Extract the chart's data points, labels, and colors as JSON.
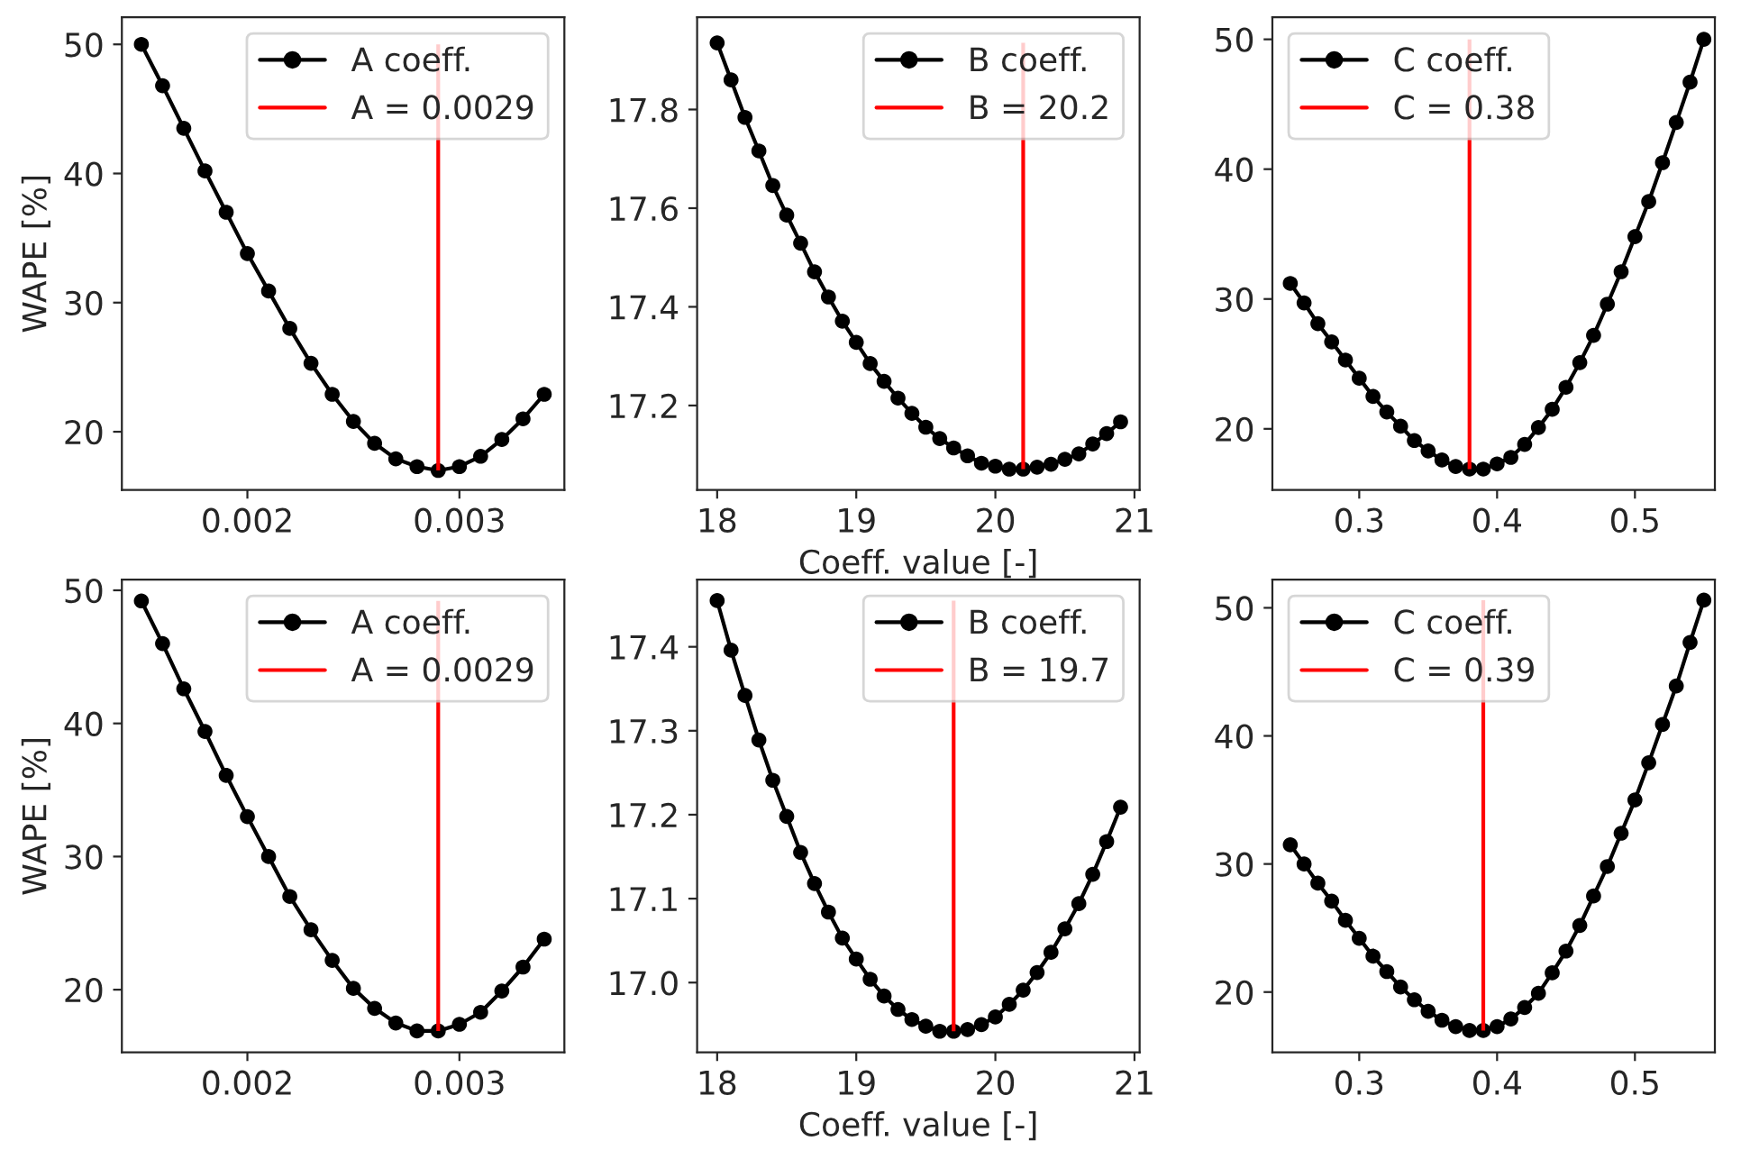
{
  "chart_data": [
    {
      "type": "line",
      "ylabel": "WAPE [%]",
      "x": [
        0.0015,
        0.0016,
        0.0017,
        0.0018,
        0.0019,
        0.002,
        0.0021,
        0.0022,
        0.0023,
        0.0024,
        0.0025,
        0.0026,
        0.0027,
        0.0028,
        0.0029,
        0.003,
        0.0031,
        0.0032,
        0.0033,
        0.0034
      ],
      "series": [
        {
          "name": "A coeff.",
          "color": "#000000",
          "values": [
            50.0,
            46.8,
            43.5,
            40.2,
            37.0,
            33.8,
            30.9,
            28.0,
            25.3,
            22.9,
            20.8,
            19.1,
            17.9,
            17.3,
            17.0,
            17.3,
            18.1,
            19.4,
            21.0,
            22.9
          ]
        }
      ],
      "ref_lines": [
        {
          "axis": "x",
          "value": 0.0029,
          "label": "A = 0.0029",
          "color": "#ff0000"
        }
      ],
      "xlim": [
        0.001408,
        0.003495
      ],
      "ylim": [
        15.5,
        52.1
      ],
      "xticks": [
        0.002,
        0.003
      ],
      "yticks": [
        20,
        30,
        40,
        50
      ],
      "marker": "circle",
      "legend": "top right",
      "grid": false
    },
    {
      "type": "line",
      "xlabel": "Coeff. value [-]",
      "x": [
        18.0,
        18.1,
        18.2,
        18.3,
        18.4,
        18.5,
        18.6,
        18.7,
        18.8,
        18.9,
        19.0,
        19.1,
        19.2,
        19.3,
        19.4,
        19.5,
        19.6,
        19.7,
        19.8,
        19.9,
        20.0,
        20.1,
        20.2,
        20.3,
        20.4,
        20.5,
        20.6,
        20.7,
        20.8,
        20.9
      ],
      "series": [
        {
          "name": "B coeff.",
          "color": "#000000",
          "values": [
            17.935,
            17.86,
            17.784,
            17.716,
            17.646,
            17.586,
            17.529,
            17.471,
            17.42,
            17.371,
            17.328,
            17.285,
            17.249,
            17.215,
            17.184,
            17.156,
            17.133,
            17.114,
            17.098,
            17.083,
            17.077,
            17.071,
            17.071,
            17.075,
            17.081,
            17.091,
            17.102,
            17.122,
            17.143,
            17.167
          ]
        }
      ],
      "ref_lines": [
        {
          "axis": "x",
          "value": 20.2,
          "label": "B = 20.2",
          "color": "#ff0000"
        }
      ],
      "xlim": [
        17.856,
        21.037
      ],
      "ylim": [
        17.029,
        17.987
      ],
      "xticks": [
        18,
        19,
        20,
        21
      ],
      "yticks": [
        17.2,
        17.4,
        17.6,
        17.8
      ],
      "marker": "circle",
      "legend": "top right",
      "grid": false
    },
    {
      "type": "line",
      "x": [
        0.25,
        0.26,
        0.27,
        0.28,
        0.29,
        0.3,
        0.31,
        0.32,
        0.33,
        0.34,
        0.35,
        0.36,
        0.37,
        0.38,
        0.39,
        0.4,
        0.41,
        0.42,
        0.43,
        0.44,
        0.45,
        0.46,
        0.47,
        0.48,
        0.49,
        0.5,
        0.51,
        0.52,
        0.53,
        0.54,
        0.55
      ],
      "series": [
        {
          "name": "C coeff.",
          "color": "#000000",
          "values": [
            31.2,
            29.7,
            28.1,
            26.7,
            25.3,
            23.9,
            22.5,
            21.3,
            20.2,
            19.1,
            18.3,
            17.6,
            17.1,
            16.9,
            16.9,
            17.3,
            17.8,
            18.8,
            20.1,
            21.5,
            23.2,
            25.1,
            27.2,
            29.6,
            32.1,
            34.8,
            37.5,
            40.5,
            43.6,
            46.7,
            50.0
          ]
        }
      ],
      "ref_lines": [
        {
          "axis": "x",
          "value": 0.38,
          "label": "C = 0.38",
          "color": "#ff0000"
        }
      ],
      "xlim": [
        0.237,
        0.558
      ],
      "ylim": [
        15.3,
        51.7
      ],
      "xticks": [
        0.3,
        0.4,
        0.5
      ],
      "yticks": [
        20,
        30,
        40,
        50
      ],
      "marker": "circle",
      "legend": "top left",
      "grid": false
    },
    {
      "type": "line",
      "ylabel": "WAPE [%]",
      "x": [
        0.0015,
        0.0016,
        0.0017,
        0.0018,
        0.0019,
        0.002,
        0.0021,
        0.0022,
        0.0023,
        0.0024,
        0.0025,
        0.0026,
        0.0027,
        0.0028,
        0.0029,
        0.003,
        0.0031,
        0.0032,
        0.0033,
        0.0034
      ],
      "series": [
        {
          "name": "A coeff.",
          "color": "#000000",
          "values": [
            49.2,
            46.0,
            42.6,
            39.4,
            36.1,
            33.0,
            30.0,
            27.0,
            24.5,
            22.2,
            20.1,
            18.6,
            17.5,
            16.9,
            16.9,
            17.4,
            18.3,
            19.9,
            21.7,
            23.8
          ]
        }
      ],
      "ref_lines": [
        {
          "axis": "x",
          "value": 0.0029,
          "label": "A = 0.0029",
          "color": "#ff0000"
        }
      ],
      "xlim": [
        0.001408,
        0.003495
      ],
      "ylim": [
        15.3,
        50.8
      ],
      "xticks": [
        0.002,
        0.003
      ],
      "yticks": [
        20,
        30,
        40,
        50
      ],
      "marker": "circle",
      "legend": "top right",
      "grid": false
    },
    {
      "type": "line",
      "xlabel": "Coeff. value [-]",
      "x": [
        18.0,
        18.1,
        18.2,
        18.3,
        18.4,
        18.5,
        18.6,
        18.7,
        18.8,
        18.9,
        19.0,
        19.1,
        19.2,
        19.3,
        19.4,
        19.5,
        19.6,
        19.7,
        19.8,
        19.9,
        20.0,
        20.1,
        20.2,
        20.3,
        20.4,
        20.5,
        20.6,
        20.7,
        20.8,
        20.9
      ],
      "series": [
        {
          "name": "B coeff.",
          "color": "#000000",
          "values": [
            17.455,
            17.396,
            17.342,
            17.289,
            17.241,
            17.198,
            17.155,
            17.118,
            17.084,
            17.053,
            17.028,
            17.004,
            16.984,
            16.968,
            16.956,
            16.948,
            16.942,
            16.942,
            16.944,
            16.95,
            16.959,
            16.974,
            16.991,
            17.012,
            17.036,
            17.064,
            17.094,
            17.129,
            17.168,
            17.209
          ]
        }
      ],
      "ref_lines": [
        {
          "axis": "x",
          "value": 19.7,
          "label": "B = 19.7",
          "color": "#ff0000"
        }
      ],
      "xlim": [
        17.856,
        21.037
      ],
      "ylim": [
        16.917,
        17.48
      ],
      "xticks": [
        18,
        19,
        20,
        21
      ],
      "yticks": [
        {
          "value": 17.0,
          "label": "17.0"
        },
        {
          "value": 17.1,
          "label": "17.1"
        },
        {
          "value": 17.2,
          "label": "17.2"
        },
        {
          "value": 17.3,
          "label": "17.3"
        },
        {
          "value": 17.4,
          "label": "17.4"
        }
      ],
      "marker": "circle",
      "legend": "top right",
      "grid": false
    },
    {
      "type": "line",
      "x": [
        0.25,
        0.26,
        0.27,
        0.28,
        0.29,
        0.3,
        0.31,
        0.32,
        0.33,
        0.34,
        0.35,
        0.36,
        0.37,
        0.38,
        0.39,
        0.4,
        0.41,
        0.42,
        0.43,
        0.44,
        0.45,
        0.46,
        0.47,
        0.48,
        0.49,
        0.5,
        0.51,
        0.52,
        0.53,
        0.54,
        0.55
      ],
      "series": [
        {
          "name": "C coeff.",
          "color": "#000000",
          "values": [
            31.5,
            30.0,
            28.5,
            27.1,
            25.6,
            24.2,
            22.8,
            21.6,
            20.4,
            19.4,
            18.5,
            17.8,
            17.3,
            17.0,
            17.0,
            17.3,
            17.9,
            18.8,
            19.9,
            21.5,
            23.2,
            25.2,
            27.5,
            29.8,
            32.4,
            35.0,
            37.9,
            40.9,
            43.9,
            47.3,
            50.6
          ]
        }
      ],
      "ref_lines": [
        {
          "axis": "x",
          "value": 0.39,
          "label": "C = 0.39",
          "color": "#ff0000"
        }
      ],
      "xlim": [
        0.237,
        0.558
      ],
      "ylim": [
        15.3,
        52.2
      ],
      "xticks": [
        0.3,
        0.4,
        0.5
      ],
      "yticks": [
        20,
        30,
        40,
        50
      ],
      "marker": "circle",
      "legend": "top left",
      "grid": false
    }
  ]
}
